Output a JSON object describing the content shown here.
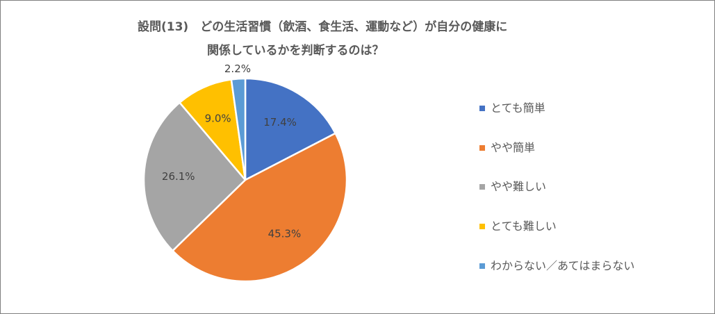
{
  "title": {
    "line1": "設問(13)　どの生活習慣（飲酒、食生活、運動など）が自分の健康に",
    "line2": "関係しているかを判断するのは？"
  },
  "chart_data": {
    "type": "pie",
    "title": "設問(13)　どの生活習慣（飲酒、食生活、運動など）が自分の健康に関係しているかを判断するのは？",
    "categories": [
      "とても簡単",
      "やや簡単",
      "やや難しい",
      "とても難しい",
      "わからない／あてはまらない"
    ],
    "values": [
      17.4,
      45.3,
      26.1,
      9.0,
      2.2
    ],
    "labels": [
      "17.4%",
      "45.3%",
      "26.1%",
      "9.0%",
      "2.2%"
    ],
    "colors": [
      "#4472c4",
      "#ed7d31",
      "#a5a5a5",
      "#ffc000",
      "#5b9bd5"
    ],
    "legend_position": "right"
  }
}
